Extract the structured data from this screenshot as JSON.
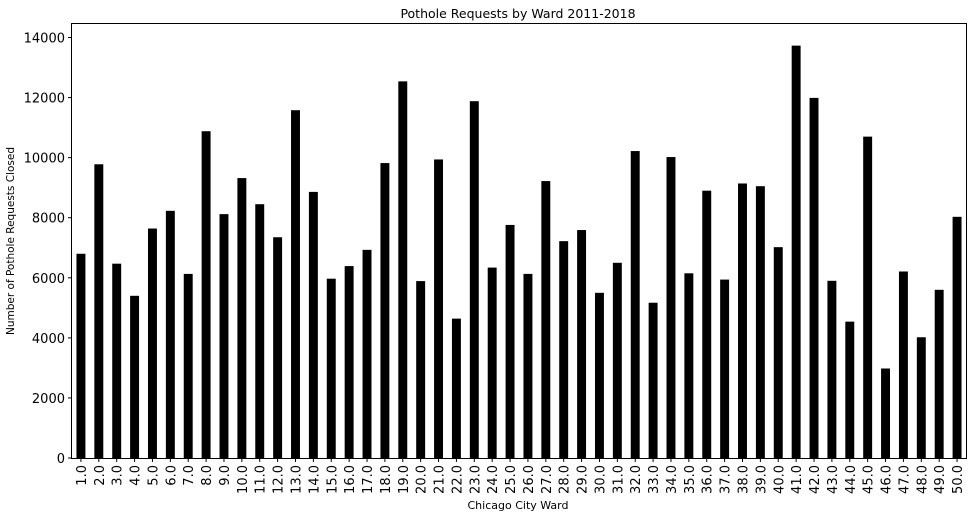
{
  "chart_data": {
    "type": "bar",
    "title": "Pothole Requests by Ward 2011-2018",
    "xlabel": "Chicago City Ward",
    "ylabel": "Number of Pothole Requests Closed",
    "categories": [
      "1.0",
      "2.0",
      "3.0",
      "4.0",
      "5.0",
      "6.0",
      "7.0",
      "8.0",
      "9.0",
      "10.0",
      "11.0",
      "12.0",
      "13.0",
      "14.0",
      "15.0",
      "16.0",
      "17.0",
      "18.0",
      "19.0",
      "20.0",
      "21.0",
      "22.0",
      "23.0",
      "24.0",
      "25.0",
      "26.0",
      "27.0",
      "28.0",
      "29.0",
      "30.0",
      "31.0",
      "32.0",
      "33.0",
      "34.0",
      "35.0",
      "36.0",
      "37.0",
      "38.0",
      "39.0",
      "40.0",
      "41.0",
      "42.0",
      "43.0",
      "44.0",
      "45.0",
      "46.0",
      "47.0",
      "48.0",
      "49.0",
      "50.0"
    ],
    "values": [
      6800,
      9780,
      6470,
      5400,
      7640,
      8230,
      6130,
      10880,
      8120,
      9320,
      8450,
      7350,
      11580,
      8860,
      5970,
      6390,
      6930,
      9820,
      12540,
      5890,
      9940,
      4640,
      11880,
      6340,
      7760,
      6130,
      9220,
      7220,
      7590,
      5500,
      6500,
      10220,
      5170,
      10020,
      6150,
      8900,
      5940,
      9140,
      9050,
      7020,
      13730,
      11990,
      5900,
      4540,
      10700,
      2980,
      6210,
      4020,
      5600,
      8030
    ],
    "yticks": [
      "0",
      "2000",
      "4000",
      "6000",
      "8000",
      "10000",
      "12000",
      "14000"
    ],
    "ylim": [
      0,
      14450
    ],
    "bar_color": "#000000",
    "grid": false,
    "legend": "none"
  }
}
